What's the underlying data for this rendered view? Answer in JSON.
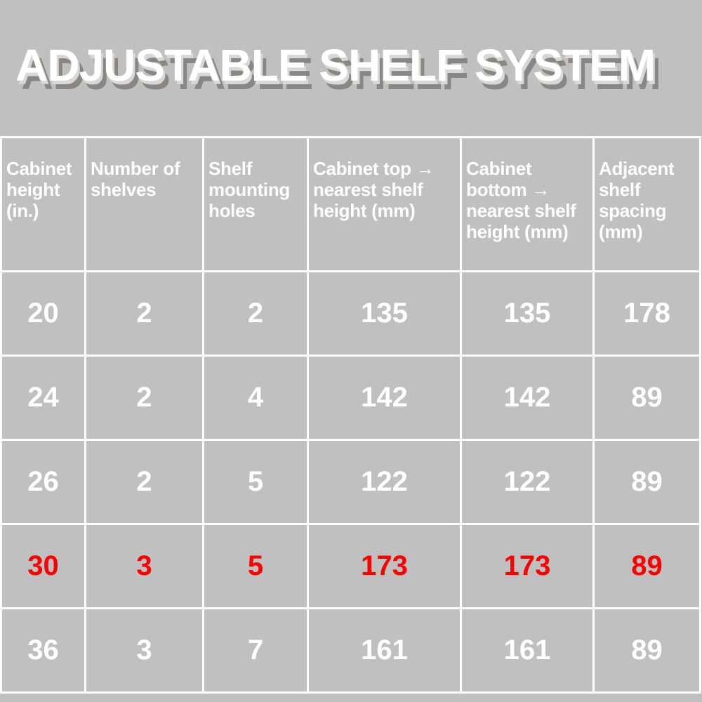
{
  "title": "ADJUSTABLE SHELF SYSTEM",
  "colors": {
    "background": "#c0c0c0",
    "text": "#ffffff",
    "highlight": "#ff0000",
    "title_shadow": "#8a8684"
  },
  "table": {
    "headers": [
      "Cabinet height (in.)",
      "Number of shelves",
      "Shelf mounting holes",
      "Cabinet top → nearest shelf height (mm)",
      "Cabinet bottom → nearest shelf height (mm)",
      "Adjacent shelf spacing (mm)"
    ],
    "rows": [
      {
        "cells": [
          "20",
          "2",
          "2",
          "135",
          "135",
          "178"
        ],
        "highlighted": false
      },
      {
        "cells": [
          "24",
          "2",
          "4",
          "142",
          "142",
          "89"
        ],
        "highlighted": false
      },
      {
        "cells": [
          "26",
          "2",
          "5",
          "122",
          "122",
          "89"
        ],
        "highlighted": false
      },
      {
        "cells": [
          "30",
          "3",
          "5",
          "173",
          "173",
          "89"
        ],
        "highlighted": true
      },
      {
        "cells": [
          "36",
          "3",
          "7",
          "161",
          "161",
          "89"
        ],
        "highlighted": false
      }
    ]
  }
}
